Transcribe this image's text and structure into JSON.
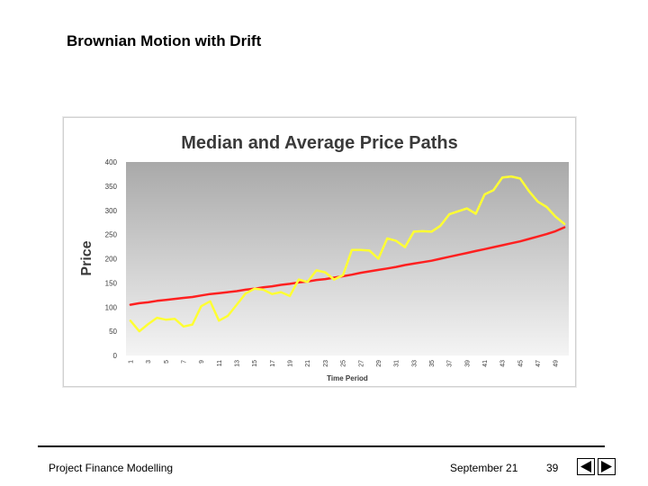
{
  "slide": {
    "title": "Brownian Motion with Drift"
  },
  "footer": {
    "left_text": "Project Finance Modelling",
    "date_text": "September 21",
    "page_number": "39",
    "prev_icon": "triangle-left-icon",
    "next_icon": "triangle-right-icon"
  },
  "chart_data": {
    "type": "line",
    "title": "Median and Average Price Paths",
    "xlabel": "Time Period",
    "ylabel": "Price",
    "ylim": [
      0,
      400
    ],
    "yticks": [
      0,
      50,
      100,
      150,
      200,
      250,
      300,
      350,
      400
    ],
    "x": [
      1,
      2,
      3,
      4,
      5,
      6,
      7,
      8,
      9,
      10,
      11,
      12,
      13,
      14,
      15,
      16,
      17,
      18,
      19,
      20,
      21,
      22,
      23,
      24,
      25,
      26,
      27,
      28,
      29,
      30,
      31,
      32,
      33,
      34,
      35,
      36,
      37,
      38,
      39,
      40,
      41,
      42,
      43,
      44,
      45,
      46,
      47,
      48,
      49,
      50
    ],
    "xtick_labels": [
      "1",
      "3",
      "5",
      "7",
      "9",
      "11",
      "13",
      "15",
      "17",
      "19",
      "21",
      "23",
      "25",
      "27",
      "29",
      "31",
      "33",
      "35",
      "37",
      "39",
      "41",
      "43",
      "45",
      "47",
      "49"
    ],
    "background": "gray gradient",
    "series": [
      {
        "color": "#ff2020",
        "values": [
          105,
          108,
          110,
          113,
          115,
          117,
          119,
          121,
          124,
          127,
          129,
          131,
          133,
          136,
          138,
          141,
          143,
          146,
          148,
          151,
          153,
          156,
          158,
          161,
          164,
          167,
          171,
          174,
          177,
          180,
          183,
          187,
          190,
          193,
          196,
          200,
          204,
          208,
          212,
          216,
          220,
          224,
          228,
          232,
          236,
          241,
          246,
          251,
          257,
          265
        ]
      },
      {
        "color": "#ffff33",
        "values": [
          72,
          50,
          65,
          78,
          74,
          76,
          60,
          64,
          102,
          112,
          72,
          82,
          105,
          128,
          138,
          136,
          127,
          131,
          123,
          157,
          152,
          176,
          172,
          157,
          166,
          218,
          218,
          217,
          200,
          242,
          237,
          224,
          256,
          257,
          256,
          268,
          292,
          298,
          304,
          293,
          333,
          342,
          368,
          370,
          366,
          340,
          318,
          307,
          287,
          272
        ]
      }
    ]
  }
}
